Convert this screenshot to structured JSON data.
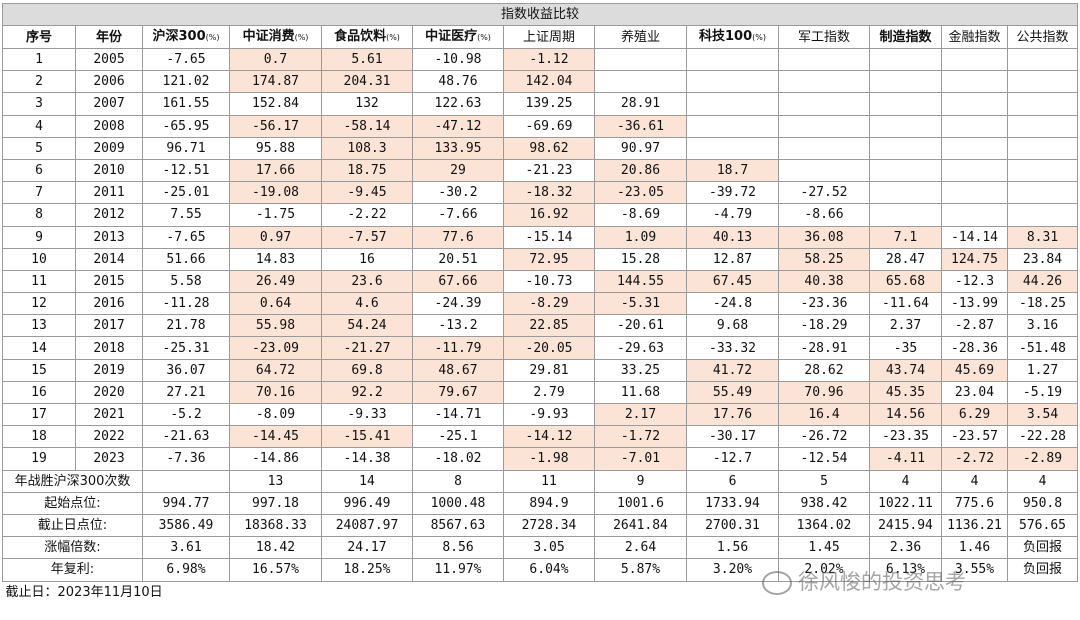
{
  "table": {
    "title": "指数收益比较",
    "headers": [
      {
        "label": "序号",
        "unit": "",
        "bold": true
      },
      {
        "label": "年份",
        "unit": "",
        "bold": true
      },
      {
        "label": "沪深300",
        "unit": "(%)",
        "bold": true
      },
      {
        "label": "中证消费",
        "unit": "(%)",
        "bold": true
      },
      {
        "label": "食品饮料",
        "unit": "(%)",
        "bold": true
      },
      {
        "label": "中证医疗",
        "unit": "(%)",
        "bold": true
      },
      {
        "label": "上证周期",
        "unit": "",
        "bold": false
      },
      {
        "label": "养殖业",
        "unit": "",
        "bold": false
      },
      {
        "label": "科技100",
        "unit": "(%)",
        "bold": true
      },
      {
        "label": "军工指数",
        "unit": "",
        "bold": false
      },
      {
        "label": "制造指数",
        "unit": "",
        "bold": true
      },
      {
        "label": "金融指数",
        "unit": "",
        "bold": false
      },
      {
        "label": "公共指数",
        "unit": "",
        "bold": false
      }
    ],
    "highlight_color": "#fbe3d5",
    "rows": [
      {
        "cells": [
          "1",
          "2005",
          "-7.65",
          "0.7",
          "5.61",
          "-10.98",
          "-1.12",
          "",
          "",
          "",
          "",
          "",
          ""
        ],
        "hl": [
          3,
          4,
          6
        ]
      },
      {
        "cells": [
          "2",
          "2006",
          "121.02",
          "174.87",
          "204.31",
          "48.76",
          "142.04",
          "",
          "",
          "",
          "",
          "",
          ""
        ],
        "hl": [
          3,
          4,
          6
        ]
      },
      {
        "cells": [
          "3",
          "2007",
          "161.55",
          "152.84",
          "132",
          "122.63",
          "139.25",
          "28.91",
          "",
          "",
          "",
          "",
          ""
        ],
        "hl": []
      },
      {
        "cells": [
          "4",
          "2008",
          "-65.95",
          "-56.17",
          "-58.14",
          "-47.12",
          "-69.69",
          "-36.61",
          "",
          "",
          "",
          "",
          ""
        ],
        "hl": [
          3,
          4,
          5,
          7
        ]
      },
      {
        "cells": [
          "5",
          "2009",
          "96.71",
          "95.88",
          "108.3",
          "133.95",
          "98.62",
          "90.97",
          "",
          "",
          "",
          "",
          ""
        ],
        "hl": [
          4,
          5,
          6
        ]
      },
      {
        "cells": [
          "6",
          "2010",
          "-12.51",
          "17.66",
          "18.75",
          "29",
          "-21.23",
          "20.86",
          "18.7",
          "",
          "",
          "",
          ""
        ],
        "hl": [
          3,
          4,
          5,
          7,
          8
        ]
      },
      {
        "cells": [
          "7",
          "2011",
          "-25.01",
          "-19.08",
          "-9.45",
          "-30.2",
          "-18.32",
          "-23.05",
          "-39.72",
          "-27.52",
          "",
          "",
          ""
        ],
        "hl": [
          3,
          4,
          6,
          7
        ]
      },
      {
        "cells": [
          "8",
          "2012",
          "7.55",
          "-1.75",
          "-2.22",
          "-7.66",
          "16.92",
          "-8.69",
          "-4.79",
          "-8.66",
          "",
          "",
          ""
        ],
        "hl": [
          6
        ]
      },
      {
        "cells": [
          "9",
          "2013",
          "-7.65",
          "0.97",
          "-7.57",
          "77.6",
          "-15.14",
          "1.09",
          "40.13",
          "36.08",
          "7.1",
          "-14.14",
          "8.31"
        ],
        "hl": [
          3,
          4,
          5,
          7,
          8,
          9,
          10,
          12
        ]
      },
      {
        "cells": [
          "10",
          "2014",
          "51.66",
          "14.83",
          "16",
          "20.51",
          "72.95",
          "15.28",
          "12.87",
          "58.25",
          "28.47",
          "124.75",
          "23.84"
        ],
        "hl": [
          6,
          9,
          11
        ]
      },
      {
        "cells": [
          "11",
          "2015",
          "5.58",
          "26.49",
          "23.6",
          "67.66",
          "-10.73",
          "144.55",
          "67.45",
          "40.38",
          "65.68",
          "-12.3",
          "44.26"
        ],
        "hl": [
          3,
          4,
          5,
          7,
          8,
          9,
          10,
          12
        ]
      },
      {
        "cells": [
          "12",
          "2016",
          "-11.28",
          "0.64",
          "4.6",
          "-24.39",
          "-8.29",
          "-5.31",
          "-24.8",
          "-23.36",
          "-11.64",
          "-13.99",
          "-18.25"
        ],
        "hl": [
          3,
          4,
          6,
          7
        ]
      },
      {
        "cells": [
          "13",
          "2017",
          "21.78",
          "55.98",
          "54.24",
          "-13.2",
          "22.85",
          "-20.61",
          "9.68",
          "-18.29",
          "2.37",
          "-2.87",
          "3.16"
        ],
        "hl": [
          3,
          4,
          6
        ]
      },
      {
        "cells": [
          "14",
          "2018",
          "-25.31",
          "-23.09",
          "-21.27",
          "-11.79",
          "-20.05",
          "-29.63",
          "-33.32",
          "-28.91",
          "-35",
          "-28.36",
          "-51.48"
        ],
        "hl": [
          3,
          4,
          5,
          6
        ]
      },
      {
        "cells": [
          "15",
          "2019",
          "36.07",
          "64.72",
          "69.8",
          "48.67",
          "29.81",
          "33.25",
          "41.72",
          "28.62",
          "43.74",
          "45.69",
          "1.27"
        ],
        "hl": [
          3,
          4,
          5,
          8,
          10,
          11
        ]
      },
      {
        "cells": [
          "16",
          "2020",
          "27.21",
          "70.16",
          "92.2",
          "79.67",
          "2.79",
          "11.68",
          "55.49",
          "70.96",
          "45.35",
          "23.04",
          "-5.19"
        ],
        "hl": [
          3,
          4,
          5,
          8,
          9,
          10
        ]
      },
      {
        "cells": [
          "17",
          "2021",
          "-5.2",
          "-8.09",
          "-9.33",
          "-14.71",
          "-9.93",
          "2.17",
          "17.76",
          "16.4",
          "14.56",
          "6.29",
          "3.54"
        ],
        "hl": [
          7,
          8,
          9,
          10,
          11,
          12
        ]
      },
      {
        "cells": [
          "18",
          "2022",
          "-21.63",
          "-14.45",
          "-15.41",
          "-25.1",
          "-14.12",
          "-1.72",
          "-30.17",
          "-26.72",
          "-23.35",
          "-23.57",
          "-22.28"
        ],
        "hl": [
          3,
          4,
          6,
          7
        ]
      },
      {
        "cells": [
          "19",
          "2023",
          "-7.36",
          "-14.86",
          "-14.38",
          "-18.02",
          "-1.98",
          "-7.01",
          "-12.7",
          "-12.54",
          "-4.11",
          "-2.72",
          "-2.89"
        ],
        "hl": [
          6,
          7,
          10,
          11,
          12
        ]
      }
    ],
    "summary": [
      {
        "label": "年战胜沪深300次数",
        "values": [
          "",
          "13",
          "14",
          "8",
          "11",
          "9",
          "6",
          "5",
          "4",
          "4",
          "4"
        ]
      },
      {
        "label": "起始点位:",
        "values": [
          "994.77",
          "997.18",
          "996.49",
          "1000.48",
          "894.9",
          "1001.6",
          "1733.94",
          "938.42",
          "1022.11",
          "775.6",
          "950.8"
        ]
      },
      {
        "label": "截止日点位:",
        "values": [
          "3586.49",
          "18368.33",
          "24087.97",
          "8567.63",
          "2728.34",
          "2641.84",
          "2700.31",
          "1364.02",
          "2415.94",
          "1136.21",
          "576.65"
        ]
      },
      {
        "label": "涨幅倍数:",
        "values": [
          "3.61",
          "18.42",
          "24.17",
          "8.56",
          "3.05",
          "2.64",
          "1.56",
          "1.45",
          "2.36",
          "1.46",
          "负回报"
        ]
      },
      {
        "label": "年复利:",
        "values": [
          "6.98%",
          "16.57%",
          "18.25%",
          "11.97%",
          "6.04%",
          "5.87%",
          "3.20%",
          "2.02%",
          "6.13%",
          "3.55%",
          "负回报"
        ]
      }
    ],
    "footnote": "截止日：2023年11月10日"
  },
  "watermark": "徐风悛的投资思考"
}
